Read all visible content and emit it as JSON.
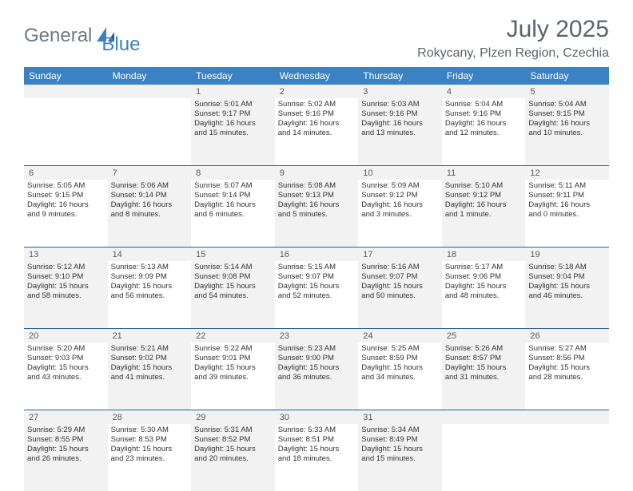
{
  "brand": {
    "general": "General",
    "blue": "Blue"
  },
  "title": "July 2025",
  "location": "Rokycany, Plzen Region, Czechia",
  "colors": {
    "header_bg": "#3b82c4",
    "header_text": "#ffffff",
    "rule": "#2b5f94",
    "shaded": "#f2f2f2",
    "body_text": "#333333",
    "muted_text": "#5a6470"
  },
  "day_headers": [
    "Sunday",
    "Monday",
    "Tuesday",
    "Wednesday",
    "Thursday",
    "Friday",
    "Saturday"
  ],
  "weeks": [
    {
      "nums": [
        "",
        "",
        "1",
        "2",
        "3",
        "4",
        "5"
      ],
      "cells": [
        null,
        null,
        {
          "sr": "5:01 AM",
          "ss": "9:17 PM",
          "dl1": "Daylight: 16 hours",
          "dl2": "and 15 minutes.",
          "shaded": true
        },
        {
          "sr": "5:02 AM",
          "ss": "9:16 PM",
          "dl1": "Daylight: 16 hours",
          "dl2": "and 14 minutes."
        },
        {
          "sr": "5:03 AM",
          "ss": "9:16 PM",
          "dl1": "Daylight: 16 hours",
          "dl2": "and 13 minutes.",
          "shaded": true
        },
        {
          "sr": "5:04 AM",
          "ss": "9:16 PM",
          "dl1": "Daylight: 16 hours",
          "dl2": "and 12 minutes."
        },
        {
          "sr": "5:04 AM",
          "ss": "9:15 PM",
          "dl1": "Daylight: 16 hours",
          "dl2": "and 10 minutes.",
          "shaded": true
        }
      ]
    },
    {
      "nums": [
        "6",
        "7",
        "8",
        "9",
        "10",
        "11",
        "12"
      ],
      "cells": [
        {
          "sr": "5:05 AM",
          "ss": "9:15 PM",
          "dl1": "Daylight: 16 hours",
          "dl2": "and 9 minutes."
        },
        {
          "sr": "5:06 AM",
          "ss": "9:14 PM",
          "dl1": "Daylight: 16 hours",
          "dl2": "and 8 minutes.",
          "shaded": true
        },
        {
          "sr": "5:07 AM",
          "ss": "9:14 PM",
          "dl1": "Daylight: 16 hours",
          "dl2": "and 6 minutes."
        },
        {
          "sr": "5:08 AM",
          "ss": "9:13 PM",
          "dl1": "Daylight: 16 hours",
          "dl2": "and 5 minutes.",
          "shaded": true
        },
        {
          "sr": "5:09 AM",
          "ss": "9:12 PM",
          "dl1": "Daylight: 16 hours",
          "dl2": "and 3 minutes."
        },
        {
          "sr": "5:10 AM",
          "ss": "9:12 PM",
          "dl1": "Daylight: 16 hours",
          "dl2": "and 1 minute.",
          "shaded": true
        },
        {
          "sr": "5:11 AM",
          "ss": "9:11 PM",
          "dl1": "Daylight: 16 hours",
          "dl2": "and 0 minutes."
        }
      ]
    },
    {
      "nums": [
        "13",
        "14",
        "15",
        "16",
        "17",
        "18",
        "19"
      ],
      "cells": [
        {
          "sr": "5:12 AM",
          "ss": "9:10 PM",
          "dl1": "Daylight: 15 hours",
          "dl2": "and 58 minutes.",
          "shaded": true
        },
        {
          "sr": "5:13 AM",
          "ss": "9:09 PM",
          "dl1": "Daylight: 15 hours",
          "dl2": "and 56 minutes."
        },
        {
          "sr": "5:14 AM",
          "ss": "9:08 PM",
          "dl1": "Daylight: 15 hours",
          "dl2": "and 54 minutes.",
          "shaded": true
        },
        {
          "sr": "5:15 AM",
          "ss": "9:07 PM",
          "dl1": "Daylight: 15 hours",
          "dl2": "and 52 minutes."
        },
        {
          "sr": "5:16 AM",
          "ss": "9:07 PM",
          "dl1": "Daylight: 15 hours",
          "dl2": "and 50 minutes.",
          "shaded": true
        },
        {
          "sr": "5:17 AM",
          "ss": "9:06 PM",
          "dl1": "Daylight: 15 hours",
          "dl2": "and 48 minutes."
        },
        {
          "sr": "5:18 AM",
          "ss": "9:04 PM",
          "dl1": "Daylight: 15 hours",
          "dl2": "and 46 minutes.",
          "shaded": true
        }
      ]
    },
    {
      "nums": [
        "20",
        "21",
        "22",
        "23",
        "24",
        "25",
        "26"
      ],
      "cells": [
        {
          "sr": "5:20 AM",
          "ss": "9:03 PM",
          "dl1": "Daylight: 15 hours",
          "dl2": "and 43 minutes."
        },
        {
          "sr": "5:21 AM",
          "ss": "9:02 PM",
          "dl1": "Daylight: 15 hours",
          "dl2": "and 41 minutes.",
          "shaded": true
        },
        {
          "sr": "5:22 AM",
          "ss": "9:01 PM",
          "dl1": "Daylight: 15 hours",
          "dl2": "and 39 minutes."
        },
        {
          "sr": "5:23 AM",
          "ss": "9:00 PM",
          "dl1": "Daylight: 15 hours",
          "dl2": "and 36 minutes.",
          "shaded": true
        },
        {
          "sr": "5:25 AM",
          "ss": "8:59 PM",
          "dl1": "Daylight: 15 hours",
          "dl2": "and 34 minutes."
        },
        {
          "sr": "5:26 AM",
          "ss": "8:57 PM",
          "dl1": "Daylight: 15 hours",
          "dl2": "and 31 minutes.",
          "shaded": true
        },
        {
          "sr": "5:27 AM",
          "ss": "8:56 PM",
          "dl1": "Daylight: 15 hours",
          "dl2": "and 28 minutes."
        }
      ]
    },
    {
      "nums": [
        "27",
        "28",
        "29",
        "30",
        "31",
        "",
        ""
      ],
      "cells": [
        {
          "sr": "5:29 AM",
          "ss": "8:55 PM",
          "dl1": "Daylight: 15 hours",
          "dl2": "and 26 minutes.",
          "shaded": true
        },
        {
          "sr": "5:30 AM",
          "ss": "8:53 PM",
          "dl1": "Daylight: 15 hours",
          "dl2": "and 23 minutes."
        },
        {
          "sr": "5:31 AM",
          "ss": "8:52 PM",
          "dl1": "Daylight: 15 hours",
          "dl2": "and 20 minutes.",
          "shaded": true
        },
        {
          "sr": "5:33 AM",
          "ss": "8:51 PM",
          "dl1": "Daylight: 15 hours",
          "dl2": "and 18 minutes."
        },
        {
          "sr": "5:34 AM",
          "ss": "8:49 PM",
          "dl1": "Daylight: 15 hours",
          "dl2": "and 15 minutes.",
          "shaded": true
        },
        null,
        null
      ]
    }
  ]
}
